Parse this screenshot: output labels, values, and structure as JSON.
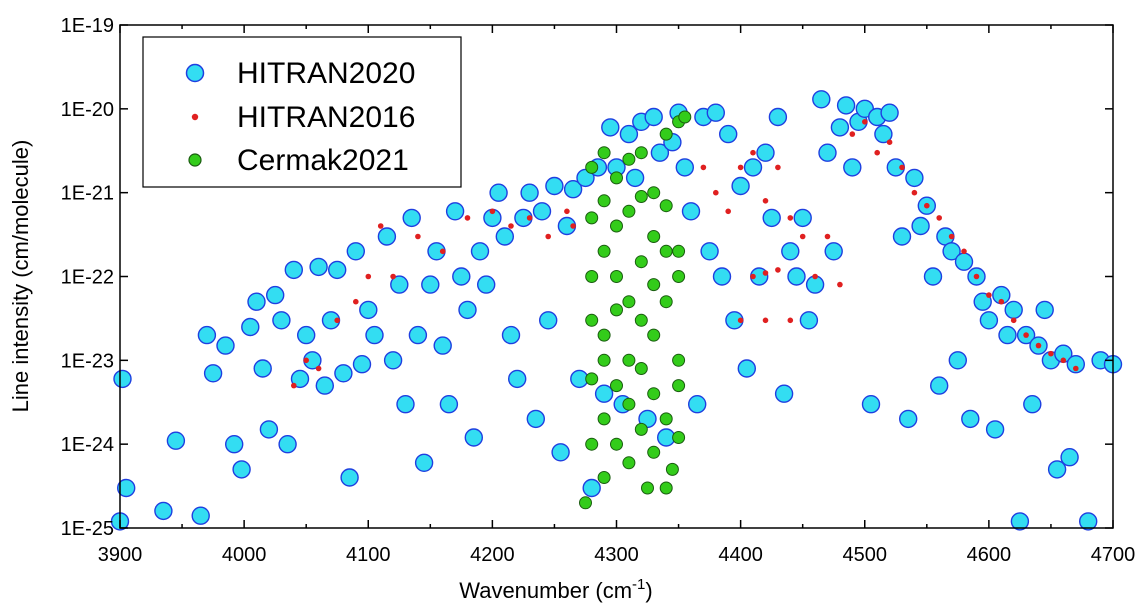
{
  "chart_data": {
    "type": "scatter",
    "title": "",
    "xlabel": "Wavenumber (cm",
    "xlabel_sup": "-1",
    "xlabel_end": ")",
    "ylabel": "Line intensity (cm/molecule)",
    "xlim": [
      3900,
      4700
    ],
    "ylim": [
      1e-25,
      1e-19
    ],
    "yscale": "log",
    "grid": false,
    "legend_position": "top-left",
    "x_ticks": [
      "3900",
      "4000",
      "4100",
      "4200",
      "4300",
      "4400",
      "4500",
      "4600",
      "4700"
    ],
    "y_ticks": [
      "1E-25",
      "1E-24",
      "1E-23",
      "1E-22",
      "1E-21",
      "1E-20",
      "1E-19"
    ],
    "series": [
      {
        "name": "HITRAN2020",
        "fill": "#33ddf2",
        "stroke": "#1f3fe0",
        "marker": "large-circle",
        "points": [
          [
            3900,
            1.2e-25
          ],
          [
            3905,
            3e-25
          ],
          [
            3902,
            6e-24
          ],
          [
            3945,
            1.1e-24
          ],
          [
            3935,
            1.6e-25
          ],
          [
            3965,
            1.4e-25
          ],
          [
            3970,
            2e-23
          ],
          [
            3975,
            7e-24
          ],
          [
            3985,
            1.5e-23
          ],
          [
            3992,
            1e-24
          ],
          [
            3998,
            5e-25
          ],
          [
            4005,
            2.5e-23
          ],
          [
            4010,
            5e-23
          ],
          [
            4015,
            8e-24
          ],
          [
            4020,
            1.5e-24
          ],
          [
            4025,
            6e-23
          ],
          [
            4030,
            3e-23
          ],
          [
            4035,
            1e-24
          ],
          [
            4040,
            1.2e-22
          ],
          [
            4045,
            6e-24
          ],
          [
            4050,
            2e-23
          ],
          [
            4055,
            1e-23
          ],
          [
            4060,
            1.3e-22
          ],
          [
            4065,
            5e-24
          ],
          [
            4070,
            3e-23
          ],
          [
            4075,
            1.2e-22
          ],
          [
            4080,
            7e-24
          ],
          [
            4085,
            4e-25
          ],
          [
            4090,
            2e-22
          ],
          [
            4095,
            9e-24
          ],
          [
            4100,
            4e-23
          ],
          [
            4105,
            2e-23
          ],
          [
            4110,
            2e-21
          ],
          [
            4115,
            3e-22
          ],
          [
            4120,
            1e-23
          ],
          [
            4125,
            8e-23
          ],
          [
            4130,
            3e-24
          ],
          [
            4135,
            5e-22
          ],
          [
            4140,
            2e-23
          ],
          [
            4145,
            6e-25
          ],
          [
            4150,
            8e-23
          ],
          [
            4155,
            2e-22
          ],
          [
            4160,
            1.5e-23
          ],
          [
            4165,
            3e-24
          ],
          [
            4170,
            6e-22
          ],
          [
            4175,
            1e-22
          ],
          [
            4180,
            4e-23
          ],
          [
            4185,
            1.2e-24
          ],
          [
            4190,
            2e-22
          ],
          [
            4195,
            8e-23
          ],
          [
            4200,
            5e-22
          ],
          [
            4205,
            1e-21
          ],
          [
            4210,
            3e-22
          ],
          [
            4215,
            2e-23
          ],
          [
            4220,
            6e-24
          ],
          [
            4225,
            5e-22
          ],
          [
            4230,
            1e-21
          ],
          [
            4235,
            2e-24
          ],
          [
            4240,
            6e-22
          ],
          [
            4245,
            3e-23
          ],
          [
            4250,
            1.2e-21
          ],
          [
            4255,
            8e-25
          ],
          [
            4260,
            4e-22
          ],
          [
            4265,
            1.1e-21
          ],
          [
            4270,
            6e-24
          ],
          [
            4275,
            1.5e-21
          ],
          [
            4280,
            3e-25
          ],
          [
            4285,
            2e-21
          ],
          [
            4290,
            4e-24
          ],
          [
            4295,
            6e-21
          ],
          [
            4300,
            2e-21
          ],
          [
            4305,
            3e-24
          ],
          [
            4310,
            5e-21
          ],
          [
            4315,
            1.5e-21
          ],
          [
            4320,
            7e-21
          ],
          [
            4325,
            2e-24
          ],
          [
            4330,
            8e-21
          ],
          [
            4335,
            3e-21
          ],
          [
            4340,
            1.2e-24
          ],
          [
            4345,
            4e-21
          ],
          [
            4350,
            9e-21
          ],
          [
            4355,
            2e-21
          ],
          [
            4360,
            6e-22
          ],
          [
            4365,
            3e-24
          ],
          [
            4370,
            8e-21
          ],
          [
            4375,
            2e-22
          ],
          [
            4380,
            9e-21
          ],
          [
            4385,
            1e-22
          ],
          [
            4390,
            5e-21
          ],
          [
            4395,
            3e-23
          ],
          [
            4400,
            1.2e-21
          ],
          [
            4405,
            8e-24
          ],
          [
            4410,
            2e-21
          ],
          [
            4415,
            1e-22
          ],
          [
            4420,
            3e-21
          ],
          [
            4425,
            5e-22
          ],
          [
            4430,
            8e-21
          ],
          [
            4435,
            4e-24
          ],
          [
            4440,
            2e-22
          ],
          [
            4445,
            1e-22
          ],
          [
            4450,
            5e-22
          ],
          [
            4455,
            3e-23
          ],
          [
            4460,
            8e-23
          ],
          [
            4465,
            1.3e-20
          ],
          [
            4470,
            3e-21
          ],
          [
            4475,
            2e-22
          ],
          [
            4480,
            6e-21
          ],
          [
            4485,
            1.1e-20
          ],
          [
            4490,
            2e-21
          ],
          [
            4495,
            7e-21
          ],
          [
            4500,
            1e-20
          ],
          [
            4505,
            3e-24
          ],
          [
            4510,
            8e-21
          ],
          [
            4515,
            5e-21
          ],
          [
            4520,
            9e-21
          ],
          [
            4525,
            2e-21
          ],
          [
            4530,
            3e-22
          ],
          [
            4535,
            2e-24
          ],
          [
            4540,
            1.5e-21
          ],
          [
            4545,
            4e-22
          ],
          [
            4550,
            7e-22
          ],
          [
            4555,
            1e-22
          ],
          [
            4560,
            5e-24
          ],
          [
            4565,
            3e-22
          ],
          [
            4570,
            2e-22
          ],
          [
            4575,
            1e-23
          ],
          [
            4580,
            1.5e-22
          ],
          [
            4585,
            2e-24
          ],
          [
            4590,
            1e-22
          ],
          [
            4595,
            5e-23
          ],
          [
            4600,
            3e-23
          ],
          [
            4605,
            1.5e-24
          ],
          [
            4610,
            6e-23
          ],
          [
            4615,
            2e-23
          ],
          [
            4620,
            4e-23
          ],
          [
            4625,
            1.2e-25
          ],
          [
            4630,
            2e-23
          ],
          [
            4635,
            3e-24
          ],
          [
            4640,
            1.5e-23
          ],
          [
            4645,
            4e-23
          ],
          [
            4650,
            1e-23
          ],
          [
            4655,
            5e-25
          ],
          [
            4660,
            1.2e-23
          ],
          [
            4665,
            7e-25
          ],
          [
            4670,
            9e-24
          ],
          [
            4680,
            1.2e-25
          ],
          [
            4690,
            1e-23
          ],
          [
            4700,
            9e-24
          ]
        ]
      },
      {
        "name": "HITRAN2016",
        "fill": "#e02020",
        "stroke": "#e02020",
        "marker": "small-dot",
        "points": [
          [
            4040,
            5e-24
          ],
          [
            4050,
            1e-23
          ],
          [
            4060,
            8e-24
          ],
          [
            4075,
            3e-23
          ],
          [
            4090,
            5e-23
          ],
          [
            4100,
            1e-22
          ],
          [
            4110,
            4e-22
          ],
          [
            4120,
            1e-22
          ],
          [
            4140,
            3e-22
          ],
          [
            4160,
            2e-22
          ],
          [
            4180,
            5e-22
          ],
          [
            4200,
            6e-22
          ],
          [
            4215,
            4e-22
          ],
          [
            4230,
            5e-22
          ],
          [
            4245,
            3e-22
          ],
          [
            4260,
            6e-22
          ],
          [
            4265,
            4e-22
          ],
          [
            4370,
            2e-21
          ],
          [
            4380,
            1e-21
          ],
          [
            4390,
            6e-22
          ],
          [
            4400,
            2e-21
          ],
          [
            4410,
            3e-21
          ],
          [
            4420,
            8e-22
          ],
          [
            4430,
            2e-21
          ],
          [
            4440,
            5e-22
          ],
          [
            4450,
            3e-22
          ],
          [
            4460,
            1e-22
          ],
          [
            4470,
            3e-22
          ],
          [
            4480,
            8e-23
          ],
          [
            4490,
            5e-21
          ],
          [
            4500,
            7e-21
          ],
          [
            4510,
            3e-21
          ],
          [
            4520,
            4e-21
          ],
          [
            4530,
            2e-21
          ],
          [
            4540,
            1e-21
          ],
          [
            4550,
            7e-22
          ],
          [
            4560,
            5e-22
          ],
          [
            4570,
            3e-22
          ],
          [
            4580,
            2e-22
          ],
          [
            4590,
            1e-22
          ],
          [
            4600,
            6e-23
          ],
          [
            4610,
            5e-23
          ],
          [
            4620,
            3e-23
          ],
          [
            4630,
            2e-23
          ],
          [
            4640,
            1.5e-23
          ],
          [
            4650,
            1.2e-23
          ],
          [
            4660,
            1e-23
          ],
          [
            4670,
            8e-24
          ],
          [
            4410,
            1e-22
          ],
          [
            4420,
            1.1e-22
          ],
          [
            4430,
            1.2e-22
          ],
          [
            4400,
            3e-23
          ],
          [
            4420,
            3e-23
          ],
          [
            4440,
            3e-23
          ]
        ]
      },
      {
        "name": "Cermak2021",
        "fill": "#33cc1a",
        "stroke": "#1a5c10",
        "marker": "medium-circle",
        "points": [
          [
            4280,
            2e-21
          ],
          [
            4290,
            3e-21
          ],
          [
            4300,
            1.5e-21
          ],
          [
            4310,
            2.5e-21
          ],
          [
            4320,
            3e-21
          ],
          [
            4330,
            1e-21
          ],
          [
            4340,
            5e-21
          ],
          [
            4350,
            7e-21
          ],
          [
            4355,
            8e-21
          ],
          [
            4280,
            5e-22
          ],
          [
            4290,
            8e-22
          ],
          [
            4300,
            4e-22
          ],
          [
            4310,
            6e-22
          ],
          [
            4320,
            9e-22
          ],
          [
            4330,
            3e-22
          ],
          [
            4340,
            7e-22
          ],
          [
            4350,
            2e-22
          ],
          [
            4280,
            1e-22
          ],
          [
            4290,
            2e-22
          ],
          [
            4300,
            1e-22
          ],
          [
            4310,
            5e-23
          ],
          [
            4320,
            1.5e-22
          ],
          [
            4330,
            8e-23
          ],
          [
            4340,
            2e-22
          ],
          [
            4350,
            1e-22
          ],
          [
            4280,
            3e-23
          ],
          [
            4290,
            2e-23
          ],
          [
            4300,
            4e-23
          ],
          [
            4310,
            1e-23
          ],
          [
            4320,
            3e-23
          ],
          [
            4330,
            2e-23
          ],
          [
            4340,
            5e-23
          ],
          [
            4350,
            1e-23
          ],
          [
            4280,
            6e-24
          ],
          [
            4290,
            1e-23
          ],
          [
            4300,
            5e-24
          ],
          [
            4310,
            3e-24
          ],
          [
            4320,
            8e-24
          ],
          [
            4330,
            4e-24
          ],
          [
            4340,
            2e-24
          ],
          [
            4350,
            5e-24
          ],
          [
            4280,
            1e-24
          ],
          [
            4290,
            2e-24
          ],
          [
            4300,
            1e-24
          ],
          [
            4310,
            6e-25
          ],
          [
            4320,
            1.5e-24
          ],
          [
            4330,
            8e-25
          ],
          [
            4340,
            3e-25
          ],
          [
            4350,
            1.2e-24
          ],
          [
            4275,
            2e-25
          ],
          [
            4290,
            4e-25
          ],
          [
            4325,
            3e-25
          ],
          [
            4345,
            5e-25
          ]
        ]
      }
    ]
  }
}
